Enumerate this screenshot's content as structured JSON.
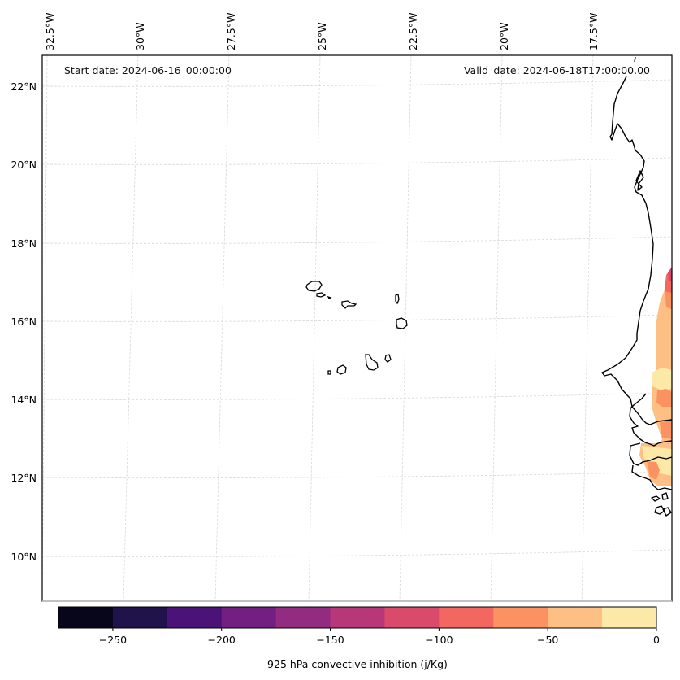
{
  "map": {
    "annotations": {
      "start_date": "Start date: 2024-06-16_00:00:00",
      "valid_date": "Valid_date: 2024-06-18T17:00:00.00"
    },
    "lon_labels": [
      "32.5°W",
      "30°W",
      "27.5°W",
      "25°W",
      "22.5°W",
      "20°W",
      "17.5°W"
    ],
    "lat_labels": [
      "22°N",
      "20°N",
      "18°N",
      "16°N",
      "14°N",
      "12°N",
      "10°N"
    ],
    "gridlines": "dashed light gray",
    "features": [
      "Cape Verde islands",
      "West African coastline (Mauritania, Senegal, Gambia, Guinea-Bissau)"
    ]
  },
  "colorbar": {
    "label": "925 hPa convective inhibition (j/Kg)",
    "range": [
      -275,
      0
    ],
    "ticks": [
      -250,
      -200,
      -150,
      -100,
      -50,
      0
    ],
    "tick_labels": [
      "−250",
      "−200",
      "−150",
      "−100",
      "−50",
      "0"
    ],
    "levels": [
      -275,
      -250,
      -225,
      -200,
      -175,
      -150,
      -125,
      -100,
      -75,
      -50,
      -25,
      0
    ],
    "colors": [
      "#07061b",
      "#20124a",
      "#4b1277",
      "#721f81",
      "#932b80",
      "#b73779",
      "#da4b6b",
      "#f2675f",
      "#fc9262",
      "#fdbf83",
      "#fce8a7"
    ]
  },
  "chart_data": {
    "type": "heatmap",
    "title": "",
    "variable": "925 hPa convective inhibition",
    "units": "j/Kg",
    "xlabel": "",
    "ylabel": "",
    "x_ticks": [
      "32.5°W",
      "30°W",
      "27.5°W",
      "25°W",
      "22.5°W",
      "20°W",
      "17.5°W"
    ],
    "y_ticks": [
      "22°N",
      "20°N",
      "18°N",
      "16°N",
      "14°N",
      "12°N",
      "10°N"
    ],
    "color_range": [
      -275,
      0
    ],
    "observed_values": "Mostly -50 to 0 over coastal West Africa (Senegal/Gambia) near 12-17°N, with small pockets of -125 to -75 near 16.5-17°N; no shading over ocean",
    "legend": "colorbar bottom"
  }
}
